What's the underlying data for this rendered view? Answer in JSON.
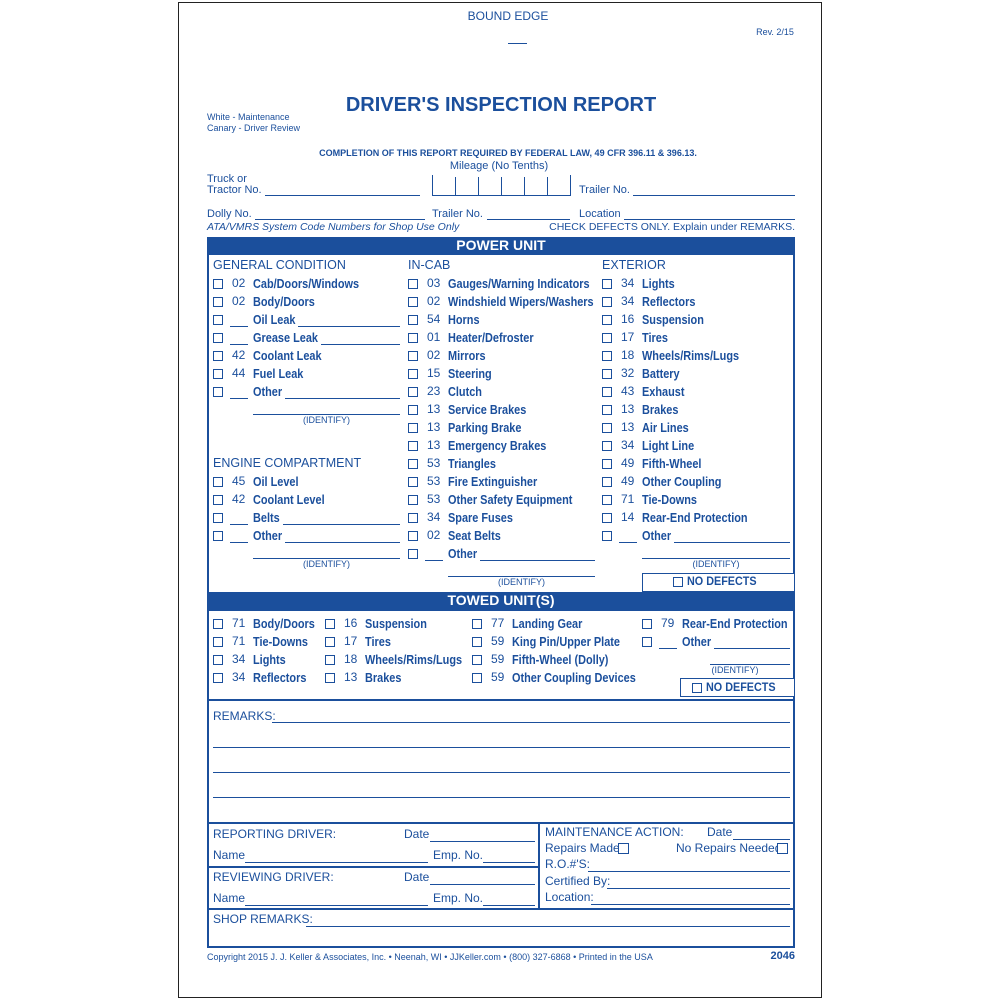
{
  "header": {
    "bound_edge": "BOUND EDGE",
    "rev": "Rev. 2/15",
    "title": "DRIVER'S INSPECTION REPORT",
    "copies": [
      "White - Maintenance",
      "Canary - Driver Review"
    ],
    "law": "COMPLETION OF THIS REPORT REQUIRED BY FEDERAL LAW, 49 CFR 396.11 & 396.13."
  },
  "fields": {
    "truck": [
      "Truck or",
      "Tractor No."
    ],
    "mileage": "Mileage (No Tenths)",
    "trailer_no_1": "Trailer No.",
    "dolly": "Dolly No.",
    "trailer_no_2": "Trailer No.",
    "location": "Location",
    "ata": "ATA/VMRS System Code Numbers for Shop Use Only",
    "check": "CHECK DEFECTS ONLY. Explain under REMARKS."
  },
  "power_unit": {
    "title": "POWER UNIT",
    "no_defects": "NO DEFECTS",
    "columns": [
      [
        {
          "heading": "GENERAL CONDITION",
          "identify": "(IDENTIFY)",
          "items": [
            {
              "code": "02",
              "label": "Cab/Doors/Windows"
            },
            {
              "code": "02",
              "label": "Body/Doors"
            },
            {
              "label": "Oil Leak"
            },
            {
              "label": "Grease Leak"
            },
            {
              "code": "42",
              "label": "Coolant Leak"
            },
            {
              "code": "44",
              "label": "Fuel Leak"
            },
            {
              "label": "Other"
            }
          ]
        },
        {
          "heading": "ENGINE COMPARTMENT",
          "identify": "(IDENTIFY)",
          "items": [
            {
              "code": "45",
              "label": "Oil Level"
            },
            {
              "code": "42",
              "label": "Coolant Level"
            },
            {
              "label": "Belts"
            },
            {
              "label": "Other"
            }
          ]
        }
      ],
      [
        {
          "heading": "IN-CAB",
          "identify": "(IDENTIFY)",
          "items": [
            {
              "code": "03",
              "label": "Gauges/Warning Indicators"
            },
            {
              "code": "02",
              "label": "Windshield Wipers/Washers"
            },
            {
              "code": "54",
              "label": "Horns"
            },
            {
              "code": "01",
              "label": "Heater/Defroster"
            },
            {
              "code": "02",
              "label": "Mirrors"
            },
            {
              "code": "15",
              "label": "Steering"
            },
            {
              "code": "23",
              "label": "Clutch"
            },
            {
              "code": "13",
              "label": "Service Brakes"
            },
            {
              "code": "13",
              "label": "Parking Brake"
            },
            {
              "code": "13",
              "label": "Emergency Brakes"
            },
            {
              "code": "53",
              "label": "Triangles"
            },
            {
              "code": "53",
              "label": "Fire Extinguisher"
            },
            {
              "code": "53",
              "label": "Other Safety Equipment"
            },
            {
              "code": "34",
              "label": "Spare Fuses"
            },
            {
              "code": "02",
              "label": "Seat Belts"
            },
            {
              "label": "Other"
            }
          ]
        }
      ],
      [
        {
          "heading": "EXTERIOR",
          "identify": "(IDENTIFY)",
          "items": [
            {
              "code": "34",
              "label": "Lights"
            },
            {
              "code": "34",
              "label": "Reflectors"
            },
            {
              "code": "16",
              "label": "Suspension"
            },
            {
              "code": "17",
              "label": "Tires"
            },
            {
              "code": "18",
              "label": "Wheels/Rims/Lugs"
            },
            {
              "code": "32",
              "label": "Battery"
            },
            {
              "code": "43",
              "label": "Exhaust"
            },
            {
              "code": "13",
              "label": "Brakes"
            },
            {
              "code": "13",
              "label": "Air Lines"
            },
            {
              "code": "34",
              "label": "Light Line"
            },
            {
              "code": "49",
              "label": "Fifth-Wheel"
            },
            {
              "code": "49",
              "label": "Other Coupling"
            },
            {
              "code": "71",
              "label": "Tie-Downs"
            },
            {
              "code": "14",
              "label": "Rear-End Protection"
            },
            {
              "label": "Other"
            }
          ]
        }
      ]
    ]
  },
  "towed_unit": {
    "title": "TOWED UNIT(S)",
    "identify": "(IDENTIFY)",
    "no_defects": "NO DEFECTS",
    "columns": [
      [
        {
          "code": "71",
          "label": "Body/Doors"
        },
        {
          "code": "71",
          "label": "Tie-Downs"
        },
        {
          "code": "34",
          "label": "Lights"
        },
        {
          "code": "34",
          "label": "Reflectors"
        }
      ],
      [
        {
          "code": "16",
          "label": "Suspension"
        },
        {
          "code": "17",
          "label": "Tires"
        },
        {
          "code": "18",
          "label": "Wheels/Rims/Lugs"
        },
        {
          "code": "13",
          "label": "Brakes"
        }
      ],
      [
        {
          "code": "77",
          "label": "Landing Gear"
        },
        {
          "code": "59",
          "label": "King Pin/Upper Plate"
        },
        {
          "code": "59",
          "label": "Fifth-Wheel (Dolly)"
        },
        {
          "code": "59",
          "label": "Other Coupling Devices"
        }
      ],
      [
        {
          "code": "79",
          "label": "Rear-End Protection"
        },
        {
          "label": "Other"
        }
      ]
    ]
  },
  "remarks": "REMARKS:",
  "reporting": {
    "title": "REPORTING DRIVER:",
    "date": "Date",
    "name": "Name",
    "emp": "Emp. No."
  },
  "reviewing": {
    "title": "REVIEWING DRIVER:",
    "date": "Date",
    "name": "Name",
    "emp": "Emp. No."
  },
  "maintenance": {
    "title": "MAINTENANCE ACTION:",
    "date": "Date",
    "repairs_made": "Repairs Made",
    "no_repairs": "No Repairs Needed",
    "ro": "R.O.#'S:",
    "certified": "Certified By:",
    "location": "Location:"
  },
  "shop_remarks": "SHOP REMARKS:",
  "footer": {
    "copyright": "Copyright 2015 J. J. Keller & Associates, Inc. • Neenah, WI • JJKeller.com • (800) 327-6868 • Printed in the USA",
    "form_no": "2046"
  }
}
